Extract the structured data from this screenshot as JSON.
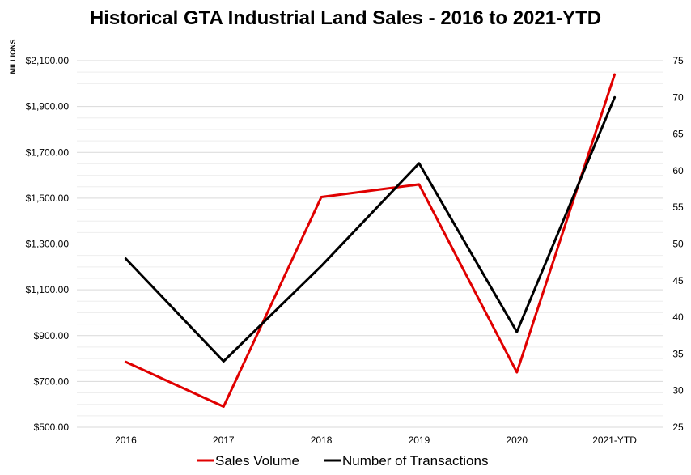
{
  "chart_data": {
    "type": "line",
    "title": "Historical GTA Industrial Land Sales - 2016 to 2021-YTD",
    "ylabel_left": "MILLIONS",
    "categories": [
      "2016",
      "2017",
      "2018",
      "2019",
      "2020",
      "2021-YTD"
    ],
    "y_left": {
      "min": 500,
      "max": 2100,
      "ticks": [
        "$500.00",
        "$700.00",
        "$900.00",
        "$1,100.00",
        "$1,300.00",
        "$1,500.00",
        "$1,700.00",
        "$1,900.00",
        "$2,100.00"
      ],
      "tick_values": [
        500,
        700,
        900,
        1100,
        1300,
        1500,
        1700,
        1900,
        2100
      ]
    },
    "y_right": {
      "min": 25,
      "max": 75,
      "ticks": [
        "25",
        "30",
        "35",
        "40",
        "45",
        "50",
        "55",
        "60",
        "65",
        "70",
        "75"
      ],
      "tick_values": [
        25,
        30,
        35,
        40,
        45,
        50,
        55,
        60,
        65,
        70,
        75
      ]
    },
    "grid": true,
    "legend_position": "bottom",
    "series": [
      {
        "name": "Sales Volume",
        "axis": "left",
        "color": "#e00000",
        "values": [
          785,
          590,
          1505,
          1560,
          740,
          2040
        ]
      },
      {
        "name": "Number of Transactions",
        "axis": "right",
        "color": "#000000",
        "values": [
          48,
          34,
          47,
          61,
          38,
          70
        ]
      }
    ]
  }
}
